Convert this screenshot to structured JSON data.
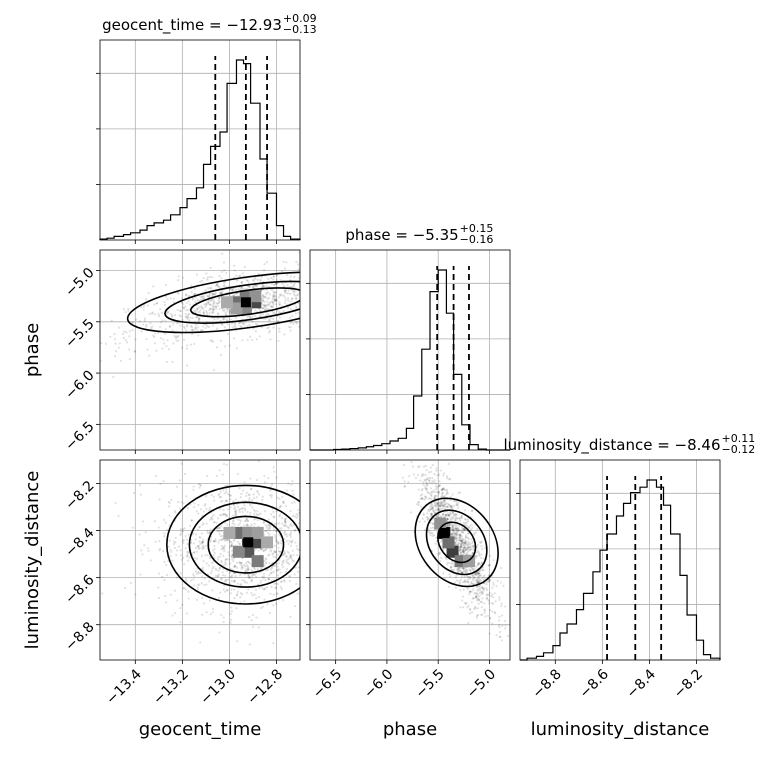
{
  "chart_data": {
    "type": "corner",
    "parameters": [
      "geocent_time",
      "phase",
      "luminosity_distance"
    ],
    "ranges": {
      "geocent_time": [
        -13.55,
        -12.7
      ],
      "phase": [
        -6.75,
        -4.8
      ],
      "luminosity_distance": [
        -8.95,
        -8.1
      ]
    },
    "ticks": {
      "geocent_time": [
        -13.4,
        -13.2,
        -13.0,
        -12.8
      ],
      "phase": [
        -6.5,
        -6.0,
        -5.5,
        -5.0
      ],
      "luminosity_distance": [
        -8.8,
        -8.6,
        -8.4,
        -8.2
      ]
    },
    "tick_labels": {
      "geocent_time": [
        "−13.4",
        "−13.2",
        "−13.0",
        "−12.8"
      ],
      "phase": [
        "−6.5",
        "−6.0",
        "−5.5",
        "−5.0"
      ],
      "luminosity_distance": [
        "−8.8",
        "−8.6",
        "−8.4",
        "−8.2"
      ]
    },
    "axis_labels": {
      "geocent_time": "geocent_time",
      "phase": "phase",
      "luminosity_distance": "luminosity_distance"
    },
    "titles": [
      {
        "param": "geocent_time",
        "main": "geocent_time = −12.93",
        "sup": "+0.09",
        "sub": "−0.13"
      },
      {
        "param": "phase",
        "main": "phase = −5.35",
        "sup": "+0.15",
        "sub": "−0.16"
      },
      {
        "param": "luminosity_distance",
        "main": "luminosity_distance = −8.46",
        "sup": "+0.11",
        "sub": "−0.12"
      }
    ],
    "quantiles": {
      "geocent_time": [
        -13.06,
        -12.93,
        -12.84
      ],
      "phase": [
        -5.51,
        -5.35,
        -5.2
      ],
      "luminosity_distance": [
        -8.58,
        -8.46,
        -8.35
      ]
    },
    "histograms": {
      "geocent_time": {
        "edges": [
          -13.55,
          -13.52,
          -13.49,
          -13.45,
          -13.42,
          -13.38,
          -13.35,
          -13.32,
          -13.28,
          -13.25,
          -13.21,
          -13.18,
          -13.14,
          -13.11,
          -13.08,
          -13.04,
          -13.01,
          -12.97,
          -12.94,
          -12.91,
          -12.87,
          -12.84,
          -12.8,
          -12.77,
          -12.74,
          -12.7
        ],
        "counts": [
          0.005,
          0.01,
          0.02,
          0.03,
          0.04,
          0.055,
          0.08,
          0.095,
          0.11,
          0.14,
          0.18,
          0.23,
          0.29,
          0.42,
          0.52,
          0.6,
          0.87,
          1.0,
          0.98,
          0.76,
          0.45,
          0.26,
          0.08,
          0.02,
          0.005
        ]
      },
      "phase": {
        "edges": [
          -6.75,
          -6.67,
          -6.59,
          -6.52,
          -6.44,
          -6.36,
          -6.28,
          -6.2,
          -6.13,
          -6.05,
          -5.97,
          -5.89,
          -5.81,
          -5.74,
          -5.66,
          -5.58,
          -5.5,
          -5.42,
          -5.35,
          -5.27,
          -5.19,
          -5.11,
          -5.03,
          -4.96,
          -4.88,
          -4.8
        ],
        "counts": [
          0.0,
          0.0,
          0.0,
          0.003,
          0.005,
          0.008,
          0.012,
          0.018,
          0.025,
          0.035,
          0.05,
          0.065,
          0.12,
          0.3,
          0.56,
          0.88,
          1.0,
          0.76,
          0.42,
          0.14,
          0.03,
          0.005,
          0.0,
          0.0,
          0.0
        ]
      },
      "luminosity_distance": {
        "edges": [
          -8.95,
          -8.92,
          -8.88,
          -8.85,
          -8.81,
          -8.78,
          -8.75,
          -8.71,
          -8.68,
          -8.64,
          -8.61,
          -8.58,
          -8.54,
          -8.51,
          -8.48,
          -8.44,
          -8.41,
          -8.37,
          -8.34,
          -8.31,
          -8.27,
          -8.24,
          -8.2,
          -8.17,
          -8.14,
          -8.1
        ],
        "counts": [
          0.0,
          0.01,
          0.02,
          0.04,
          0.08,
          0.15,
          0.2,
          0.28,
          0.37,
          0.49,
          0.61,
          0.7,
          0.8,
          0.87,
          0.93,
          0.96,
          1.0,
          0.96,
          0.86,
          0.7,
          0.47,
          0.25,
          0.11,
          0.03,
          0.01
        ]
      }
    },
    "pairs": [
      {
        "x": "geocent_time",
        "y": "phase",
        "center": [
          -12.92,
          -5.31
        ],
        "spread": [
          0.22,
          0.14
        ],
        "corr": 0.3,
        "contour_levels": [
          1.0,
          1.45,
          2.1
        ],
        "peak": [
          -12.93,
          -5.31
        ],
        "density": [
          {
            "x": -12.93,
            "y": -5.31,
            "v": 1.0
          },
          {
            "x": -12.89,
            "y": -5.31,
            "v": 0.75
          },
          {
            "x": -12.97,
            "y": -5.31,
            "v": 0.6
          },
          {
            "x": -12.93,
            "y": -5.25,
            "v": 0.55
          },
          {
            "x": -12.93,
            "y": -5.37,
            "v": 0.5
          },
          {
            "x": -12.89,
            "y": -5.25,
            "v": 0.45
          },
          {
            "x": -12.97,
            "y": -5.37,
            "v": 0.4
          },
          {
            "x": -13.01,
            "y": -5.31,
            "v": 0.35
          }
        ]
      },
      {
        "x": "geocent_time",
        "y": "luminosity_distance",
        "center": [
          -12.93,
          -8.46
        ],
        "spread": [
          0.16,
          0.12
        ],
        "corr": 0.0,
        "contour_levels": [
          1.0,
          1.5,
          2.1
        ],
        "peak": [
          -12.92,
          -8.45
        ],
        "density": [
          {
            "x": -12.92,
            "y": -8.45,
            "v": 1.0
          },
          {
            "x": -12.88,
            "y": -8.45,
            "v": 0.75
          },
          {
            "x": -12.96,
            "y": -8.41,
            "v": 0.6
          },
          {
            "x": -12.92,
            "y": -8.49,
            "v": 0.7
          },
          {
            "x": -12.88,
            "y": -8.53,
            "v": 0.55
          },
          {
            "x": -12.96,
            "y": -8.49,
            "v": 0.5
          },
          {
            "x": -12.92,
            "y": -8.41,
            "v": 0.45
          },
          {
            "x": -12.88,
            "y": -8.41,
            "v": 0.4
          },
          {
            "x": -13.0,
            "y": -8.41,
            "v": 0.35
          },
          {
            "x": -12.84,
            "y": -8.45,
            "v": 0.35
          }
        ]
      },
      {
        "x": "phase",
        "y": "luminosity_distance",
        "center": [
          -5.32,
          -8.45
        ],
        "spread": [
          0.16,
          0.13
        ],
        "corr": -0.82,
        "contour_levels": [
          1.0,
          1.6,
          2.2
        ],
        "peak": [
          -5.44,
          -8.41
        ],
        "density": [
          {
            "x": -5.44,
            "y": -8.41,
            "v": 1.0
          },
          {
            "x": -5.36,
            "y": -8.49,
            "v": 0.8
          },
          {
            "x": -5.4,
            "y": -8.45,
            "v": 0.6
          },
          {
            "x": -5.28,
            "y": -8.53,
            "v": 0.55
          },
          {
            "x": -5.48,
            "y": -8.37,
            "v": 0.45
          },
          {
            "x": -5.2,
            "y": -8.53,
            "v": 0.4
          }
        ]
      }
    ],
    "grid": true
  }
}
